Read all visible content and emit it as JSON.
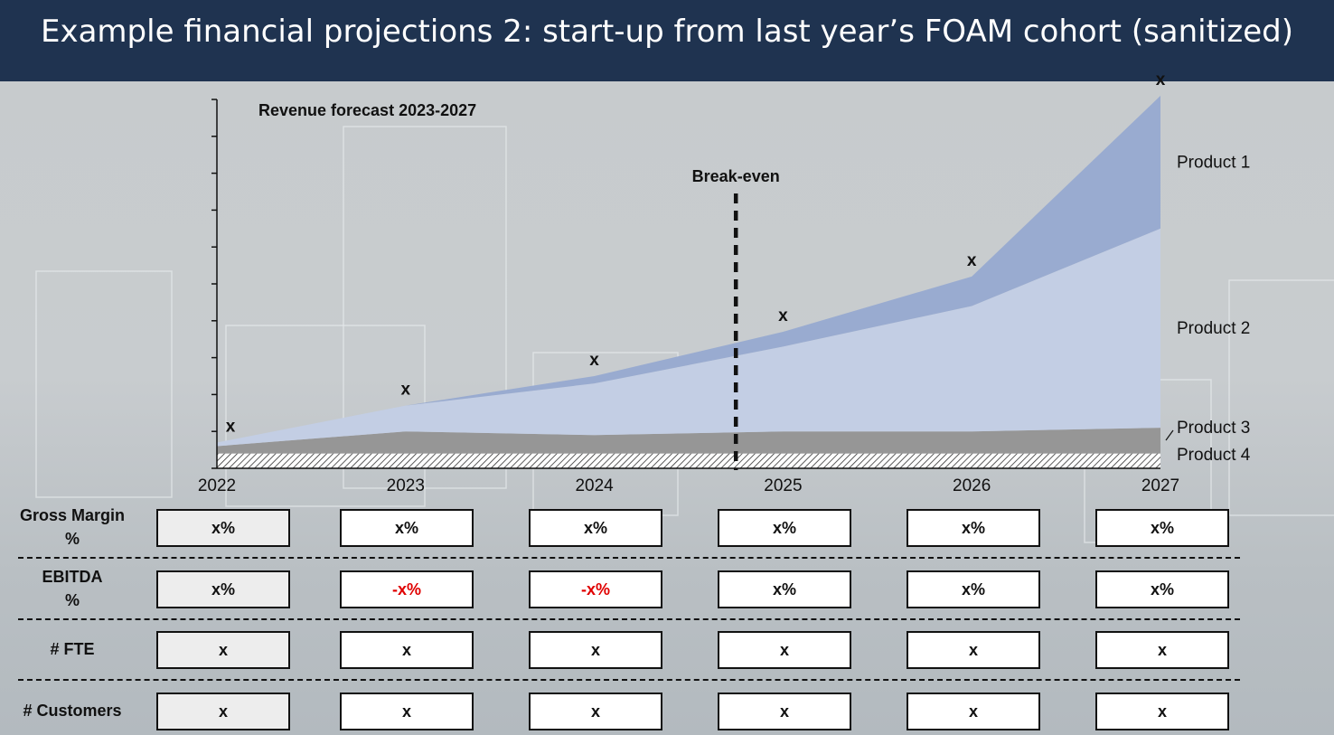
{
  "page": {
    "title": "Example financial projections 2: start-up from last year’s FOAM cohort (sanitized)"
  },
  "chart_data": {
    "type": "area",
    "title": "Revenue forecast 2023-2027",
    "x": [
      "2022",
      "2023",
      "2024",
      "2025",
      "2026",
      "2027"
    ],
    "stacking": "stacked",
    "series": [
      {
        "name": "Product 4",
        "values": [
          4,
          4,
          4,
          4,
          4,
          4
        ],
        "color": "#ffffff",
        "pattern": "hatch"
      },
      {
        "name": "Product 3",
        "values": [
          2,
          6,
          5,
          6,
          6,
          7
        ],
        "color": "#969696"
      },
      {
        "name": "Product 2",
        "values": [
          1,
          7,
          14,
          23,
          34,
          54
        ],
        "color": "#c3cee4"
      },
      {
        "name": "Product 1",
        "values": [
          0,
          0,
          2,
          4,
          8,
          36
        ],
        "color": "#99abd0"
      }
    ],
    "point_labels": [
      "x",
      "x",
      "x",
      "x",
      "x",
      "x"
    ],
    "ylim": [
      0,
      100
    ],
    "y_ticks_shown": false,
    "annotation": {
      "label": "Break-even",
      "position_x": "2024.75"
    }
  },
  "table": {
    "rows": [
      {
        "label": "Gross Margin\n%",
        "cells": [
          "x%",
          "x%",
          "x%",
          "x%",
          "x%",
          "x%"
        ],
        "negative": [
          false,
          false,
          false,
          false,
          false,
          false
        ]
      },
      {
        "label": "EBITDA\n%",
        "cells": [
          "x%",
          "-x%",
          "-x%",
          "x%",
          "x%",
          "x%"
        ],
        "negative": [
          false,
          true,
          true,
          false,
          false,
          false
        ]
      },
      {
        "label": "# FTE",
        "cells": [
          "x",
          "x",
          "x",
          "x",
          "x",
          "x"
        ],
        "negative": [
          false,
          false,
          false,
          false,
          false,
          false
        ]
      },
      {
        "label": "# Customers",
        "cells": [
          "x",
          "x",
          "x",
          "x",
          "x",
          "x"
        ],
        "negative": [
          false,
          false,
          false,
          false,
          false,
          false
        ]
      }
    ]
  },
  "colors": {
    "title_bar": "#1f3350",
    "negative": "#e00000"
  }
}
